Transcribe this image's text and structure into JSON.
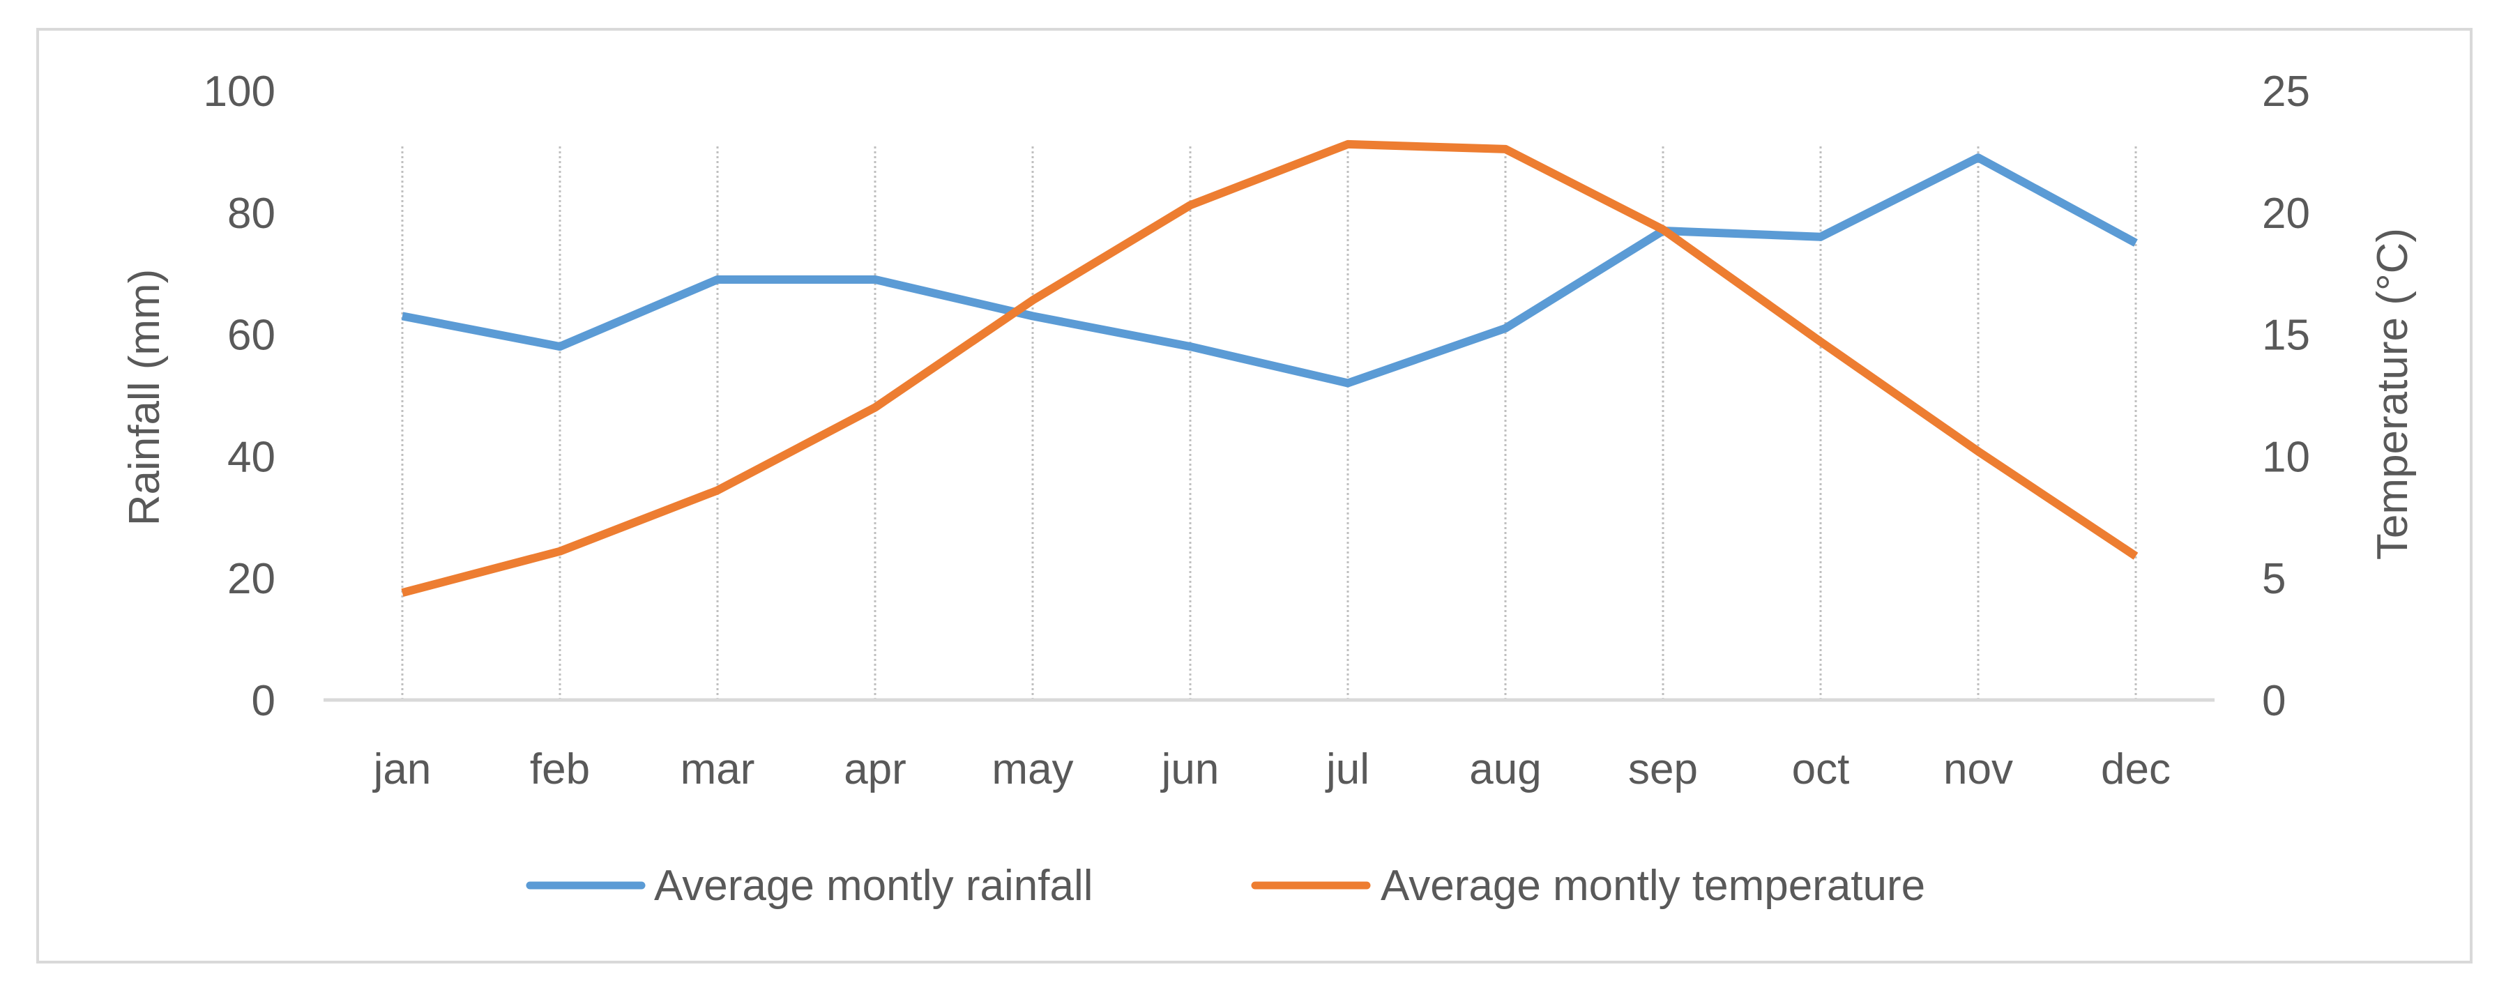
{
  "chart_data": {
    "type": "line",
    "title": "",
    "categories": [
      "jan",
      "feb",
      "mar",
      "apr",
      "may",
      "jun",
      "jul",
      "aug",
      "sep",
      "oct",
      "nov",
      "dec"
    ],
    "series": [
      {
        "name": "Average montly rainfall",
        "axis": "left",
        "color": "#5b9bd5",
        "values": [
          63,
          58,
          69,
          69,
          63,
          58,
          52,
          61,
          77,
          76,
          89,
          75
        ]
      },
      {
        "name": "Average montly temperature",
        "axis": "right",
        "color": "#ed7d31",
        "values": [
          4.4,
          6.1,
          8.6,
          12.0,
          16.4,
          20.3,
          22.8,
          22.6,
          19.3,
          14.7,
          10.2,
          5.9
        ]
      }
    ],
    "ylabel_left": "Rainfall (mm)",
    "ylabel_right": "Temperature (°C)",
    "ylim_left": [
      0,
      100
    ],
    "yticks_left": [
      0,
      20,
      40,
      60,
      80,
      100
    ],
    "ylim_right": [
      0,
      25
    ],
    "yticks_right": [
      0,
      5,
      10,
      15,
      20,
      25
    ],
    "grid": "vertical dotted",
    "legend_position": "bottom",
    "colors": {
      "axis": "#d9d9d9",
      "text": "#595959",
      "grid": "#bfbfbf"
    }
  }
}
